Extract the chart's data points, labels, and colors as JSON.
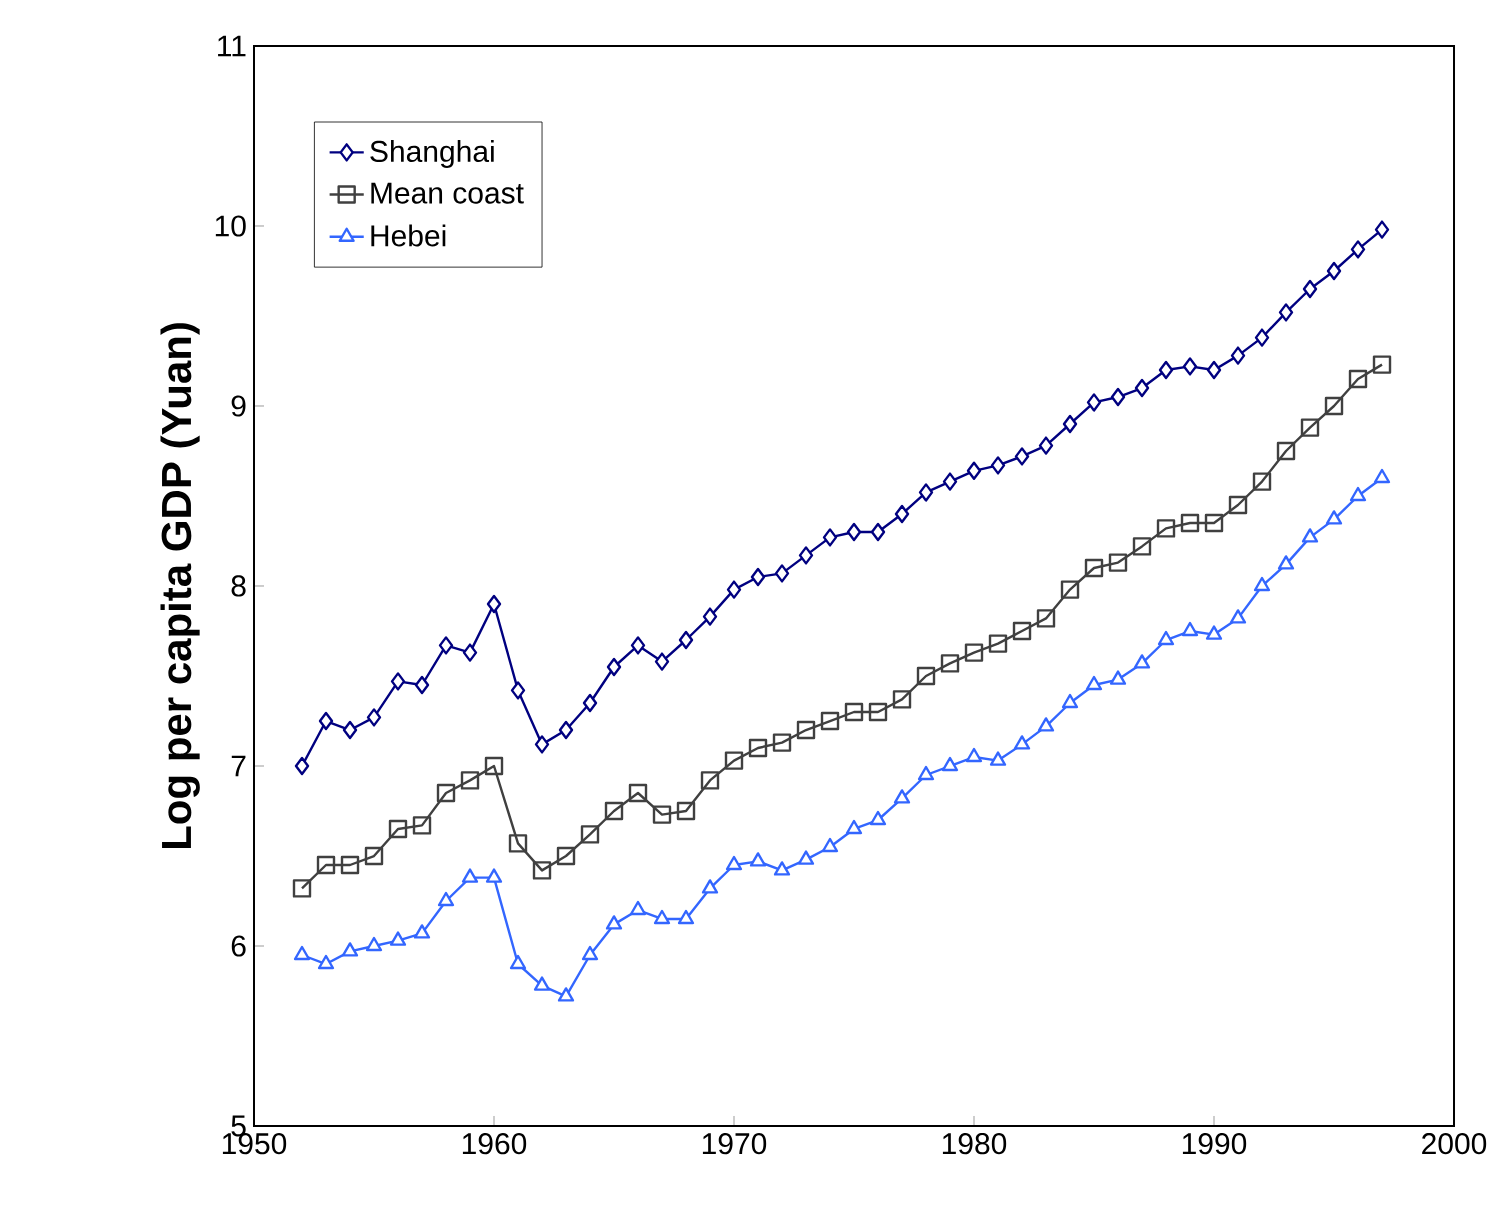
{
  "chart_data": {
    "type": "line",
    "ylabel": "Log per capita GDP (Yuan)",
    "x": [
      1952,
      1953,
      1954,
      1955,
      1956,
      1957,
      1958,
      1959,
      1960,
      1961,
      1962,
      1963,
      1964,
      1965,
      1966,
      1967,
      1968,
      1969,
      1970,
      1971,
      1972,
      1973,
      1974,
      1975,
      1976,
      1977,
      1978,
      1979,
      1980,
      1981,
      1982,
      1983,
      1984,
      1985,
      1986,
      1987,
      1988,
      1989,
      1990,
      1991,
      1992,
      1993,
      1994,
      1995,
      1996,
      1997
    ],
    "series": [
      {
        "name": "Shanghai",
        "color": "#000080",
        "marker": "diamond",
        "values": [
          7.0,
          7.25,
          7.2,
          7.27,
          7.47,
          7.45,
          7.67,
          7.63,
          7.9,
          7.42,
          7.12,
          7.2,
          7.35,
          7.55,
          7.67,
          7.58,
          7.7,
          7.83,
          7.98,
          8.05,
          8.07,
          8.17,
          8.27,
          8.3,
          8.3,
          8.4,
          8.52,
          8.58,
          8.64,
          8.67,
          8.72,
          8.78,
          8.9,
          9.02,
          9.05,
          9.1,
          9.2,
          9.22,
          9.2,
          9.28,
          9.38,
          9.52,
          9.65,
          9.75,
          9.87,
          9.98
        ]
      },
      {
        "name": "Mean coast",
        "color": "#404040",
        "marker": "square",
        "values": [
          6.32,
          6.45,
          6.45,
          6.5,
          6.65,
          6.67,
          6.85,
          6.92,
          7.0,
          6.57,
          6.42,
          6.5,
          6.62,
          6.75,
          6.85,
          6.73,
          6.75,
          6.92,
          7.03,
          7.1,
          7.13,
          7.2,
          7.25,
          7.3,
          7.3,
          7.37,
          7.5,
          7.57,
          7.63,
          7.68,
          7.75,
          7.82,
          7.98,
          8.1,
          8.13,
          8.22,
          8.32,
          8.35,
          8.35,
          8.45,
          8.58,
          8.75,
          8.88,
          9.0,
          9.15,
          9.23
        ]
      },
      {
        "name": "Hebei",
        "color": "#3366ff",
        "marker": "triangle",
        "values": [
          5.95,
          5.9,
          5.97,
          6.0,
          6.03,
          6.07,
          6.25,
          6.38,
          6.38,
          5.9,
          5.78,
          5.72,
          5.95,
          6.12,
          6.2,
          6.15,
          6.15,
          6.32,
          6.45,
          6.47,
          6.42,
          6.48,
          6.55,
          6.65,
          6.7,
          6.82,
          6.95,
          7.0,
          7.05,
          7.03,
          7.12,
          7.22,
          7.35,
          7.45,
          7.48,
          7.57,
          7.7,
          7.75,
          7.73,
          7.82,
          8.0,
          8.12,
          8.27,
          8.37,
          8.5,
          8.6
        ]
      }
    ],
    "xlim": [
      1950,
      2000
    ],
    "xticks": [
      1950,
      1960,
      1970,
      1980,
      1990,
      2000
    ],
    "ylim": [
      5,
      11
    ],
    "yticks": [
      5,
      6,
      7,
      8,
      9,
      10,
      11
    ],
    "grid": false,
    "legend": "top left"
  }
}
